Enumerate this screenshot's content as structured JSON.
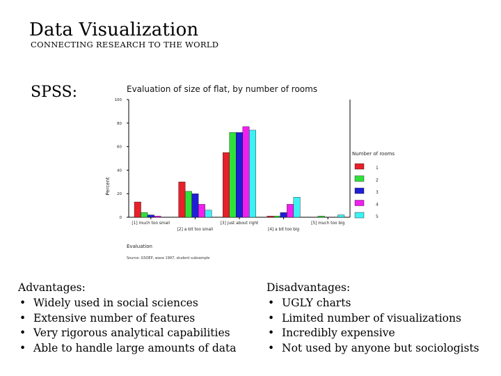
{
  "slide": {
    "title": "Data Visualization",
    "subtitle": "CONNECTING RESEARCH TO THE WORLD",
    "section_label": "SPSS:"
  },
  "advantages": {
    "heading": "Advantages:",
    "items": [
      "Widely used in social sciences",
      "Extensive number of features",
      "Very rigorous analytical capabilities",
      "Able to handle large amounts of data"
    ]
  },
  "disadvantages": {
    "heading": "Disadvantages:",
    "items": [
      "UGLY charts",
      "Limited number of visualizations",
      "Incredibly expensive",
      "Not used by anyone but sociologists"
    ]
  },
  "chart_data": {
    "type": "bar",
    "title": "Evaluation of size of flat, by number of rooms",
    "xlabel": "Evaluation",
    "ylabel": "Percent",
    "ylim": [
      0,
      100
    ],
    "yticks": [
      0,
      20,
      40,
      60,
      80,
      100
    ],
    "grid": false,
    "legend_title": "Number of rooms",
    "legend_position": "right",
    "source_note": "Source: GSOEP, wave 1997, student subsample",
    "categories": [
      "[1] much too small",
      "[2] a bit too small",
      "[3] just about right",
      "[4] a bit too big",
      "[5] much too big"
    ],
    "series": [
      {
        "name": "1",
        "color": "#e8202a",
        "values": [
          13,
          30,
          55,
          1,
          0
        ]
      },
      {
        "name": "2",
        "color": "#2fe23a",
        "values": [
          4,
          22,
          72,
          1,
          1
        ]
      },
      {
        "name": "3",
        "color": "#1f1fd6",
        "values": [
          2,
          20,
          72,
          4,
          0
        ]
      },
      {
        "name": "4",
        "color": "#f01ff0",
        "values": [
          1,
          11,
          77,
          11,
          0
        ]
      },
      {
        "name": "5",
        "color": "#3ef0f4",
        "values": [
          0,
          6,
          74,
          17,
          2
        ]
      }
    ]
  }
}
